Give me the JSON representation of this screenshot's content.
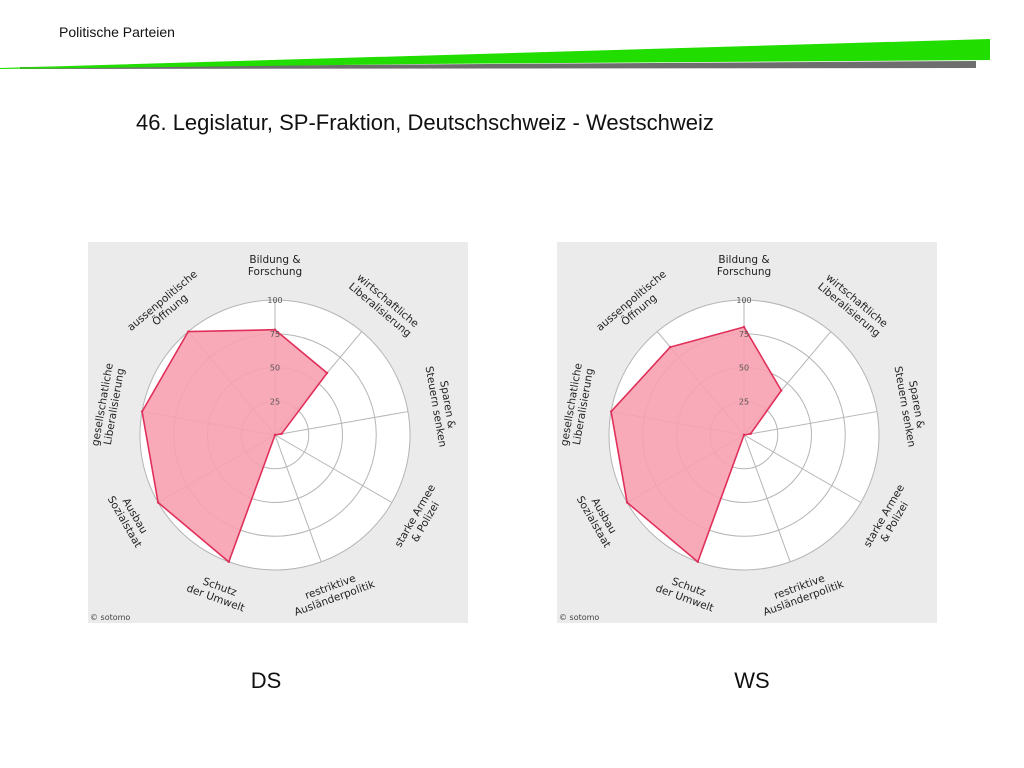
{
  "header": {
    "title": "Politische Parteien",
    "accent_color": "#22dd00",
    "bar_color": "#6e6e6e"
  },
  "slide": {
    "title": "46. Legislatur, SP-Fraktion, Deutschschweiz - Westschweiz"
  },
  "chart_data": [
    {
      "type": "radar",
      "caption": "DS",
      "copyright": "© sotomo",
      "axes": [
        [
          "Bildung &",
          "Forschung"
        ],
        [
          "wirtschaftliche",
          "Liberalisierung"
        ],
        [
          "Sparen &",
          "Steuern senken"
        ],
        [
          "starke Armee",
          "& Polizei"
        ],
        [
          "restriktive",
          "Ausländerpolitik"
        ],
        [
          "Schutz",
          "der Umwelt"
        ],
        [
          "Ausbau",
          "Sozialstaat"
        ],
        [
          "gesellschatliche",
          "Liberalisierung"
        ],
        [
          "aussenpolitische",
          "Öffnung"
        ]
      ],
      "ticks": [
        "25",
        "50",
        "75",
        "100"
      ],
      "range": [
        0,
        100
      ],
      "values": [
        78,
        60,
        5,
        0,
        0,
        100,
        100,
        100,
        100
      ],
      "fill_color": "#f7a1b0",
      "line_color": "#e0305a"
    },
    {
      "type": "radar",
      "caption": "WS",
      "copyright": "© sotomo",
      "axes": [
        [
          "Bildung &",
          "Forschung"
        ],
        [
          "wirtschaftliche",
          "Liberalisierung"
        ],
        [
          "Sparen &",
          "Steuern senken"
        ],
        [
          "starke Armee",
          "& Polizei"
        ],
        [
          "restriktive",
          "Ausländerpolitik"
        ],
        [
          "Schutz",
          "der Umwelt"
        ],
        [
          "Ausbau",
          "Sozialstaat"
        ],
        [
          "gesellschatliche",
          "Liberalisierung"
        ],
        [
          "aussenpolitische",
          "Öffnung"
        ]
      ],
      "ticks": [
        "25",
        "50",
        "75",
        "100"
      ],
      "range": [
        0,
        100
      ],
      "values": [
        80,
        43,
        5,
        0,
        0,
        100,
        100,
        100,
        85
      ],
      "fill_color": "#f7a1b0",
      "line_color": "#e0305a"
    }
  ]
}
